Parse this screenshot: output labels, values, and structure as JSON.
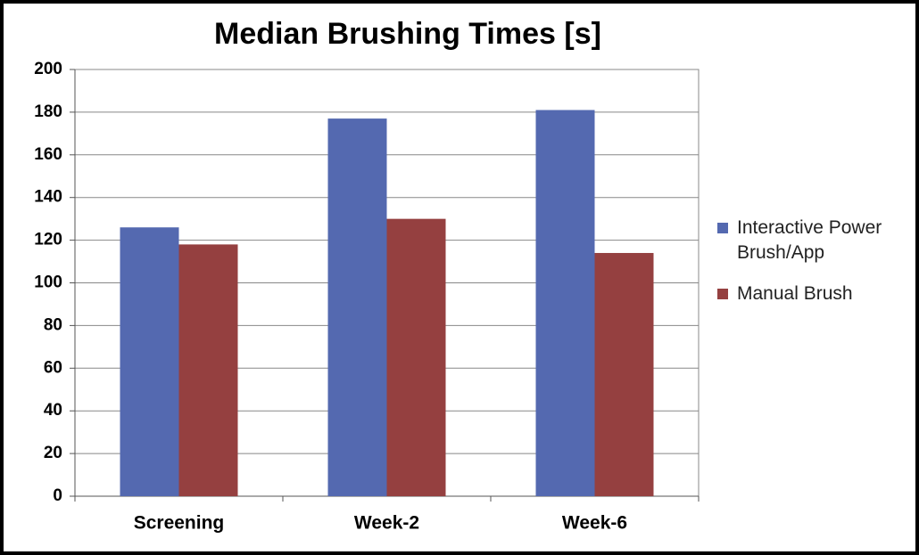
{
  "chart_data": {
    "type": "bar",
    "title": "Median Brushing Times [s]",
    "categories": [
      "Screening",
      "Week-2",
      "Week-6"
    ],
    "series": [
      {
        "name": "Interactive Power Brush/App",
        "color": "#5469b0",
        "values": [
          126,
          177,
          181
        ]
      },
      {
        "name": "Manual Brush",
        "color": "#954040",
        "values": [
          118,
          130,
          114
        ]
      }
    ],
    "ylim": [
      0,
      200
    ],
    "yticks": [
      0,
      20,
      40,
      60,
      80,
      100,
      120,
      140,
      160,
      180,
      200
    ],
    "grid": true
  }
}
